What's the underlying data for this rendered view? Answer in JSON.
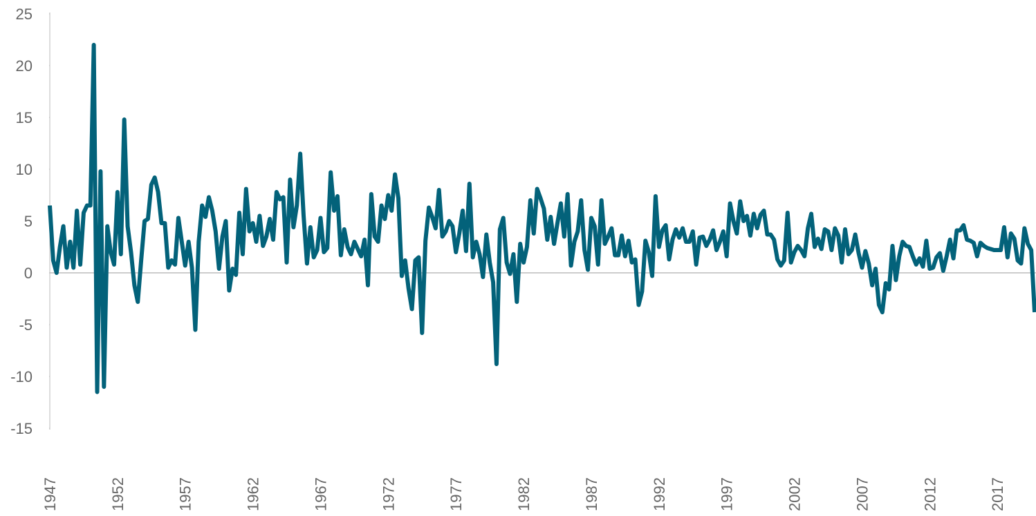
{
  "chart_data": {
    "type": "line",
    "categories": [
      "1947",
      null,
      null,
      null,
      null,
      null,
      null,
      null,
      null,
      null,
      null,
      null,
      null,
      null,
      null,
      null,
      null,
      null,
      null,
      null,
      "1952",
      null,
      null,
      null,
      null,
      null,
      null,
      null,
      null,
      null,
      null,
      null,
      null,
      null,
      null,
      null,
      null,
      null,
      null,
      null,
      "1957",
      null,
      null,
      null,
      null,
      null,
      null,
      null,
      null,
      null,
      null,
      null,
      null,
      null,
      null,
      null,
      null,
      null,
      null,
      null,
      "1962",
      null,
      null,
      null,
      null,
      null,
      null,
      null,
      null,
      null,
      null,
      null,
      null,
      null,
      null,
      null,
      null,
      null,
      null,
      null,
      "1967",
      null,
      null,
      null,
      null,
      null,
      null,
      null,
      null,
      null,
      null,
      null,
      null,
      null,
      null,
      null,
      null,
      null,
      null,
      null,
      "1972",
      null,
      null,
      null,
      null,
      null,
      null,
      null,
      null,
      null,
      null,
      null,
      null,
      null,
      null,
      null,
      null,
      null,
      null,
      null,
      "1977",
      null,
      null,
      null,
      null,
      null,
      null,
      null,
      null,
      null,
      null,
      null,
      null,
      null,
      null,
      null,
      null,
      null,
      null,
      null,
      "1982",
      null,
      null,
      null,
      null,
      null,
      null,
      null,
      null,
      null,
      null,
      null,
      null,
      null,
      null,
      null,
      null,
      null,
      null,
      null,
      "1987",
      null,
      null,
      null,
      null,
      null,
      null,
      null,
      null,
      null,
      null,
      null,
      null,
      null,
      null,
      null,
      null,
      null,
      null,
      null,
      "1992",
      null,
      null,
      null,
      null,
      null,
      null,
      null,
      null,
      null,
      null,
      null,
      null,
      null,
      null,
      null,
      null,
      null,
      null,
      null,
      "1997",
      null,
      null,
      null,
      null,
      null,
      null,
      null,
      null,
      null,
      null,
      null,
      null,
      null,
      null,
      null,
      null,
      null,
      null,
      null,
      "2002",
      null,
      null,
      null,
      null,
      null,
      null,
      null,
      null,
      null,
      null,
      null,
      null,
      null,
      null,
      null,
      null,
      null,
      null,
      null,
      "2007",
      null,
      null,
      null,
      null,
      null,
      null,
      null,
      null,
      null,
      null,
      null,
      null,
      null,
      null,
      null,
      null,
      null,
      null,
      null,
      "2012",
      null,
      null,
      null,
      null,
      null,
      null,
      null,
      null,
      null,
      null,
      null,
      null,
      null,
      null,
      null,
      null,
      null,
      null,
      null,
      "2017",
      null,
      null,
      null,
      null,
      null,
      null,
      null,
      null,
      null,
      null,
      null
    ],
    "series": [
      {
        "color": "#03627a",
        "values": [
          6.5,
          1.2,
          0,
          2.5,
          4.5,
          0.5,
          3,
          0.5,
          6,
          0.8,
          5.8,
          6.5,
          6.5,
          22,
          -11.5,
          9.8,
          -11,
          4.5,
          2,
          0.8,
          7.8,
          1.8,
          14.8,
          4.5,
          2,
          -1.2,
          -2.8,
          1.2,
          5,
          5.2,
          8.5,
          9.2,
          7.8,
          4.8,
          4.8,
          0.5,
          1.2,
          0.8,
          5.3,
          3,
          0.7,
          3,
          0.5,
          -5.5,
          3,
          6.5,
          5.4,
          7.3,
          6,
          4,
          0.4,
          3.5,
          5,
          -1.7,
          0.4,
          -0.2,
          5.8,
          1.8,
          8.1,
          4,
          4.8,
          3,
          5.5,
          2.6,
          3.5,
          5.2,
          3.2,
          7.8,
          7.1,
          7.3,
          1,
          9,
          4.4,
          6.5,
          11.5,
          5.5,
          0.9,
          4.4,
          1.5,
          2.2,
          5.3,
          2,
          2.4,
          9.7,
          6,
          7.4,
          1.7,
          4.2,
          2.5,
          1.8,
          3,
          2.3,
          1.6,
          3.2,
          -1.2,
          7.6,
          3.5,
          3,
          6.5,
          5.2,
          7.5,
          6,
          9.5,
          7.2,
          -0.3,
          1.2,
          -1.5,
          -3.5,
          1.2,
          1.5,
          -5.8,
          3.1,
          6.3,
          5.4,
          4.3,
          8,
          3.5,
          4,
          5,
          4.5,
          2,
          3.8,
          6,
          2.1,
          8.6,
          1.5,
          3,
          1.8,
          -0.4,
          3.7,
          1,
          -0.9,
          -8.8,
          4.2,
          5.3,
          1,
          -0.1,
          1.8,
          -2.8,
          2.8,
          1,
          2.5,
          7,
          3.8,
          8.1,
          7.2,
          6.2,
          3.2,
          5.4,
          2.8,
          4.8,
          6.7,
          3.5,
          7.6,
          0.7,
          3,
          4,
          7,
          2.2,
          0.3,
          5.3,
          4.5,
          0.8,
          7,
          2.8,
          3.5,
          4.3,
          1.7,
          1.7,
          3.6,
          1.6,
          3.1,
          1,
          1.3,
          -3.1,
          -1.8,
          3.1,
          2,
          -0.3,
          7.4,
          2.5,
          4.1,
          4.6,
          1.3,
          3.2,
          4.2,
          3.4,
          4.3,
          3,
          3,
          4,
          0.8,
          3.4,
          3.5,
          2.6,
          3.2,
          4.1,
          2.2,
          3,
          4,
          1.6,
          6.7,
          5,
          3.8,
          6.9,
          5,
          5.5,
          3.6,
          5.7,
          4.3,
          5.6,
          6,
          3.7,
          3.7,
          3.2,
          1.3,
          0.7,
          1.2,
          5.8,
          1,
          2,
          2.6,
          2.2,
          1.6,
          4.3,
          5.7,
          2.5,
          3.3,
          2.3,
          4.2,
          4,
          2.2,
          4.3,
          3.6,
          1,
          4.2,
          1.8,
          2.2,
          3.7,
          1.9,
          0.5,
          2.1,
          0.9,
          -1.2,
          0.4,
          -3.1,
          -3.8,
          -1,
          -1.6,
          2.6,
          -0.7,
          1.6,
          3,
          2.6,
          2.5,
          1.6,
          0.8,
          1.4,
          0.6,
          3.1,
          0.4,
          0.5,
          1.5,
          1.9,
          0.2,
          1.6,
          3.2,
          1.4,
          4.1,
          4.1,
          4.6,
          3.2,
          3.1,
          2.9,
          1.6,
          2.9,
          2.6,
          2.4,
          2.3,
          2.2,
          2.2,
          2.2,
          4.4,
          1.5,
          3.8,
          3.3,
          1.2,
          0.9,
          4.3,
          2.8,
          2.2,
          -3.8
        ]
      }
    ],
    "ylim": [
      -15,
      25
    ],
    "yticks": [
      -15,
      -10,
      -5,
      0,
      5,
      10,
      15,
      20,
      25
    ],
    "zero_line": true
  }
}
